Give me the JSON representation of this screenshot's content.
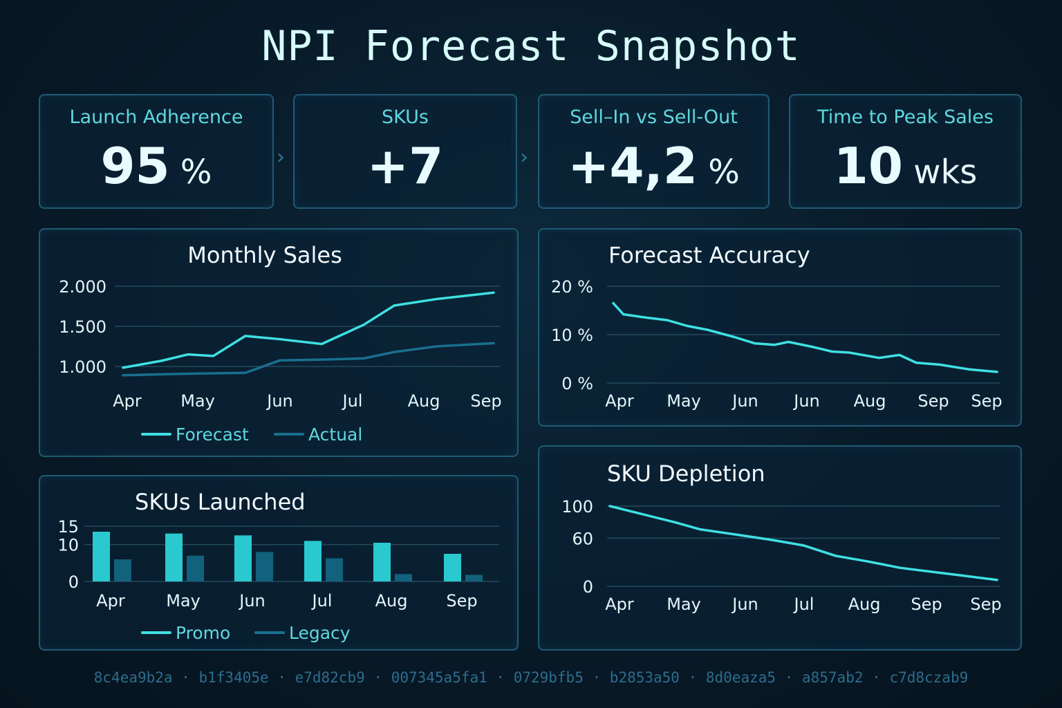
{
  "title": "NPI Forecast Snapshot",
  "kpis": [
    {
      "label": "Launch Adherence",
      "value": "95",
      "unit": " %"
    },
    {
      "label": "SKUs",
      "value": "+7",
      "unit": ""
    },
    {
      "label": "Sell–In vs Sell-Out",
      "value": "+4,2",
      "unit": " %"
    },
    {
      "label": "Time to Peak Sales",
      "value": "10",
      "unit": " wks"
    }
  ],
  "colors": {
    "primary": "#3fe0e3",
    "secondary": "#1a6f8f",
    "grid": "#24495e",
    "background": "#081a28"
  },
  "chart_data": [
    {
      "type": "line",
      "title": "Monthly Sales",
      "x": [
        "Apr",
        "May",
        "Jun",
        "Jul",
        "Aug",
        "Sep"
      ],
      "tick_labels": [
        "Apr",
        "May",
        "Jun",
        "Jul",
        "Aug",
        "Sep"
      ],
      "yticks": [
        1000,
        1500,
        2000
      ],
      "ytick_labels": [
        "1.000",
        "1.500",
        "2.000"
      ],
      "ylim": [
        1000,
        2000
      ],
      "series": [
        {
          "name": "Forecast",
          "x": [
            0,
            0.5,
            0.85,
            1.18,
            1.6,
            2.05,
            2.6,
            3.15,
            3.55,
            4.1,
            4.85
          ],
          "values": [
            985,
            1070,
            1150,
            1130,
            1380,
            1340,
            1280,
            1520,
            1760,
            1840,
            1920
          ]
        },
        {
          "name": "Actual",
          "x": [
            0,
            0.85,
            1.6,
            2.05,
            2.6,
            3.15,
            3.55,
            4.1,
            4.85
          ],
          "values": [
            890,
            910,
            920,
            1075,
            1085,
            1100,
            1180,
            1250,
            1290
          ]
        }
      ],
      "legend": "bottom",
      "grid": true
    },
    {
      "type": "line",
      "title": "Forecast Accuracy",
      "x": [
        "Apr",
        "May",
        "Jun",
        "Jun",
        "Aug",
        "Sep",
        "Sep"
      ],
      "tick_labels": [
        "Apr",
        "May",
        "Jun",
        "Jun",
        "Aug",
        "Sep",
        "Sep"
      ],
      "yticks": [
        0,
        10,
        20
      ],
      "ytick_labels": [
        "0 %",
        "10 %",
        "20 %"
      ],
      "ylim": [
        0,
        20
      ],
      "series": [
        {
          "name": "",
          "x": [
            0,
            0.15,
            0.5,
            0.8,
            1.1,
            1.4,
            1.8,
            2.1,
            2.4,
            2.6,
            2.95,
            3.25,
            3.5,
            3.95,
            4.25,
            4.5,
            4.85,
            5.3,
            5.7
          ],
          "values": [
            16.5,
            14.2,
            13.5,
            13,
            11.8,
            11,
            9.5,
            8.2,
            7.9,
            8.5,
            7.5,
            6.5,
            6.3,
            5.2,
            5.8,
            4.2,
            3.8,
            2.8,
            2.3
          ]
        }
      ],
      "grid": true
    },
    {
      "type": "bar",
      "title": "SKUs Launched",
      "categories": [
        "Apr",
        "May",
        "Jun",
        "Jul",
        "Aug",
        "Sep"
      ],
      "yticks": [
        0,
        10,
        15
      ],
      "ytick_labels": [
        "0",
        "10",
        "15"
      ],
      "ylim": [
        0,
        15
      ],
      "series": [
        {
          "name": "Promo",
          "values": [
            13.5,
            13,
            12.5,
            11,
            10.5,
            7.5
          ]
        },
        {
          "name": "Legacy",
          "values": [
            6,
            7,
            8,
            6.3,
            2,
            1.8
          ]
        }
      ],
      "legend": "bottom",
      "grid": true
    },
    {
      "type": "line",
      "title": "SKU Depletion",
      "x": [
        "Apr",
        "May",
        "Jun",
        "Jul",
        "Aug",
        "Sep",
        "Sep"
      ],
      "tick_labels": [
        "Apr",
        "May",
        "Jun",
        "Jul",
        "Aug",
        "Sep",
        "Sep"
      ],
      "yticks": [
        0,
        60,
        100
      ],
      "ytick_labels": [
        "0",
        "60",
        "100"
      ],
      "ylim": [
        0,
        100
      ],
      "series": [
        {
          "name": "",
          "x": [
            0,
            0.5,
            1,
            1.4,
            2,
            2.5,
            3,
            3.5,
            4,
            4.5,
            5,
            5.5,
            6
          ],
          "values": [
            100,
            90,
            80,
            71,
            64,
            58,
            51,
            38,
            31,
            23,
            18,
            13,
            8
          ]
        }
      ],
      "grid": true
    }
  ],
  "footer_hashes": [
    "8c4ea9b2a",
    "b1f3405e",
    "e7d82cb9",
    "007345a5fa1",
    "0729bfb5",
    "b2853a50",
    "8d0eaza5",
    "a857ab2",
    "c7d8czab9"
  ],
  "footer_separator": " · "
}
